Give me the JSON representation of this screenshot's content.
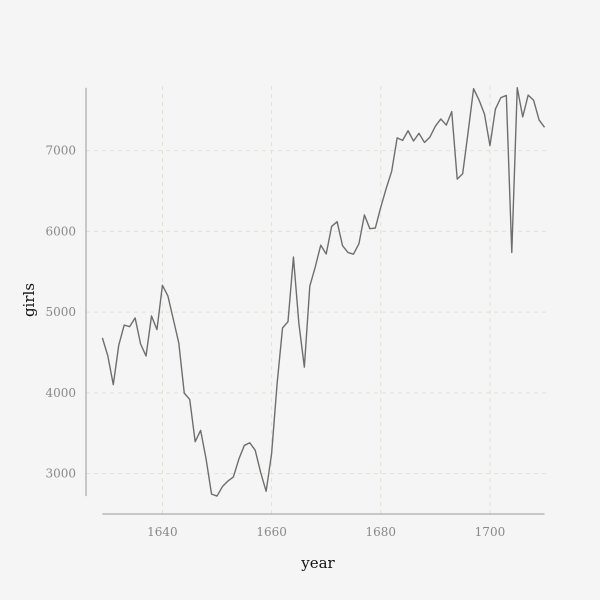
{
  "chart_data": {
    "type": "line",
    "title": "",
    "xlabel": "year",
    "ylabel": "girls",
    "xlim": [
      1626,
      1711
    ],
    "ylim": [
      2500,
      7800
    ],
    "x_ticks": [
      1640,
      1660,
      1680,
      1700
    ],
    "y_ticks": [
      3000,
      4000,
      5000,
      6000,
      7000
    ],
    "x_tick_labels": [
      "1640",
      "1660",
      "1680",
      "1700"
    ],
    "y_tick_labels": [
      "3000",
      "4000",
      "5000",
      "6000",
      "7000"
    ],
    "grid": true,
    "legend": "none",
    "colors": {
      "line": "#6e6e6e",
      "grid": "#dfe3cf",
      "axis": "#999999",
      "background": "#f5f5f5"
    },
    "series": [
      {
        "x": [
          1629,
          1630,
          1631,
          1632,
          1633,
          1634,
          1635,
          1636,
          1637,
          1638,
          1639,
          1640,
          1641,
          1642,
          1643,
          1644,
          1645,
          1646,
          1647,
          1648,
          1649,
          1650,
          1651,
          1652,
          1653,
          1654,
          1655,
          1656,
          1657,
          1658,
          1659,
          1660,
          1661,
          1662,
          1663,
          1664,
          1665,
          1666,
          1667,
          1668,
          1669,
          1670,
          1671,
          1672,
          1673,
          1674,
          1675,
          1676,
          1677,
          1678,
          1679,
          1680,
          1681,
          1682,
          1683,
          1684,
          1685,
          1686,
          1687,
          1688,
          1689,
          1690,
          1691,
          1692,
          1693,
          1694,
          1695,
          1696,
          1697,
          1698,
          1699,
          1700,
          1701,
          1702,
          1703,
          1704,
          1705,
          1706,
          1707,
          1708,
          1709,
          1710
        ],
        "y": [
          4681,
          4457,
          4102,
          4590,
          4839,
          4820,
          4928,
          4605,
          4457,
          4952,
          4784,
          5332,
          5200,
          4910,
          4617,
          3997,
          3919,
          3395,
          3536,
          3181,
          2746,
          2722,
          2840,
          2908,
          2959,
          3179,
          3349,
          3382,
          3289,
          3013,
          2781,
          3247,
          4107,
          4803,
          4881,
          5681,
          4858,
          4319,
          5322,
          5560,
          5829,
          5719,
          6061,
          6120,
          5822,
          5738,
          5717,
          5847,
          6203,
          6033,
          6041,
          6299,
          6533,
          6744,
          7158,
          7127,
          7246,
          7119,
          7214,
          7101,
          7167,
          7302,
          7392,
          7316,
          7483,
          6647,
          6713,
          7229,
          7767,
          7626,
          7452,
          7061,
          7514,
          7656,
          7683,
          5738,
          7779,
          7417,
          7687,
          7623,
          7380,
          7288
        ]
      }
    ]
  }
}
